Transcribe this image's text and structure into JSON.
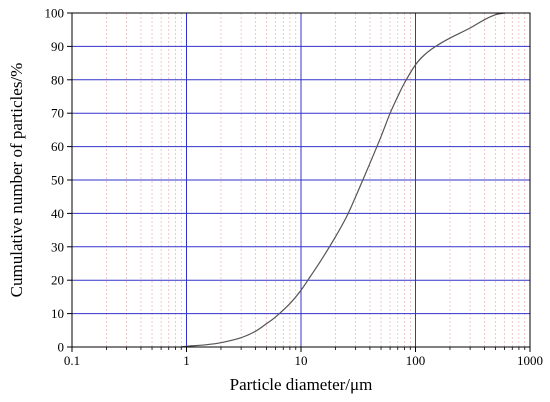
{
  "chart_data": {
    "type": "line",
    "title": "",
    "xlabel": "Particle diameter/μm",
    "ylabel": "Cumulative number of particles/%",
    "x_scale": "log",
    "xlim": [
      0.1,
      1000
    ],
    "ylim": [
      0,
      100
    ],
    "x_ticks": [
      "0.1",
      "1",
      "10",
      "100",
      "1000"
    ],
    "y_ticks": [
      "0",
      "10",
      "20",
      "30",
      "40",
      "50",
      "60",
      "70",
      "80",
      "90",
      "100"
    ],
    "grid": true,
    "legend": "none",
    "colors": {
      "major_grid": "#3333cc",
      "minor_grid": "#e8b4b4",
      "line": "#555555",
      "axis": "#000000"
    },
    "series": [
      {
        "x": [
          0.9,
          1,
          1.5,
          2,
          3,
          4,
          5,
          6,
          8,
          10,
          12,
          15,
          20,
          25,
          30,
          40,
          50,
          60,
          70,
          80,
          100,
          120,
          150,
          200,
          300,
          400,
          500,
          600
        ],
        "y": [
          0,
          0.2,
          0.7,
          1.3,
          2.8,
          4.7,
          7.0,
          9.0,
          13.0,
          17.0,
          21.0,
          26.0,
          33.0,
          39.0,
          45.0,
          55.0,
          63.0,
          70.0,
          75.0,
          79.0,
          84.5,
          87.5,
          90.0,
          92.5,
          95.5,
          98.0,
          99.5,
          100
        ]
      }
    ]
  }
}
